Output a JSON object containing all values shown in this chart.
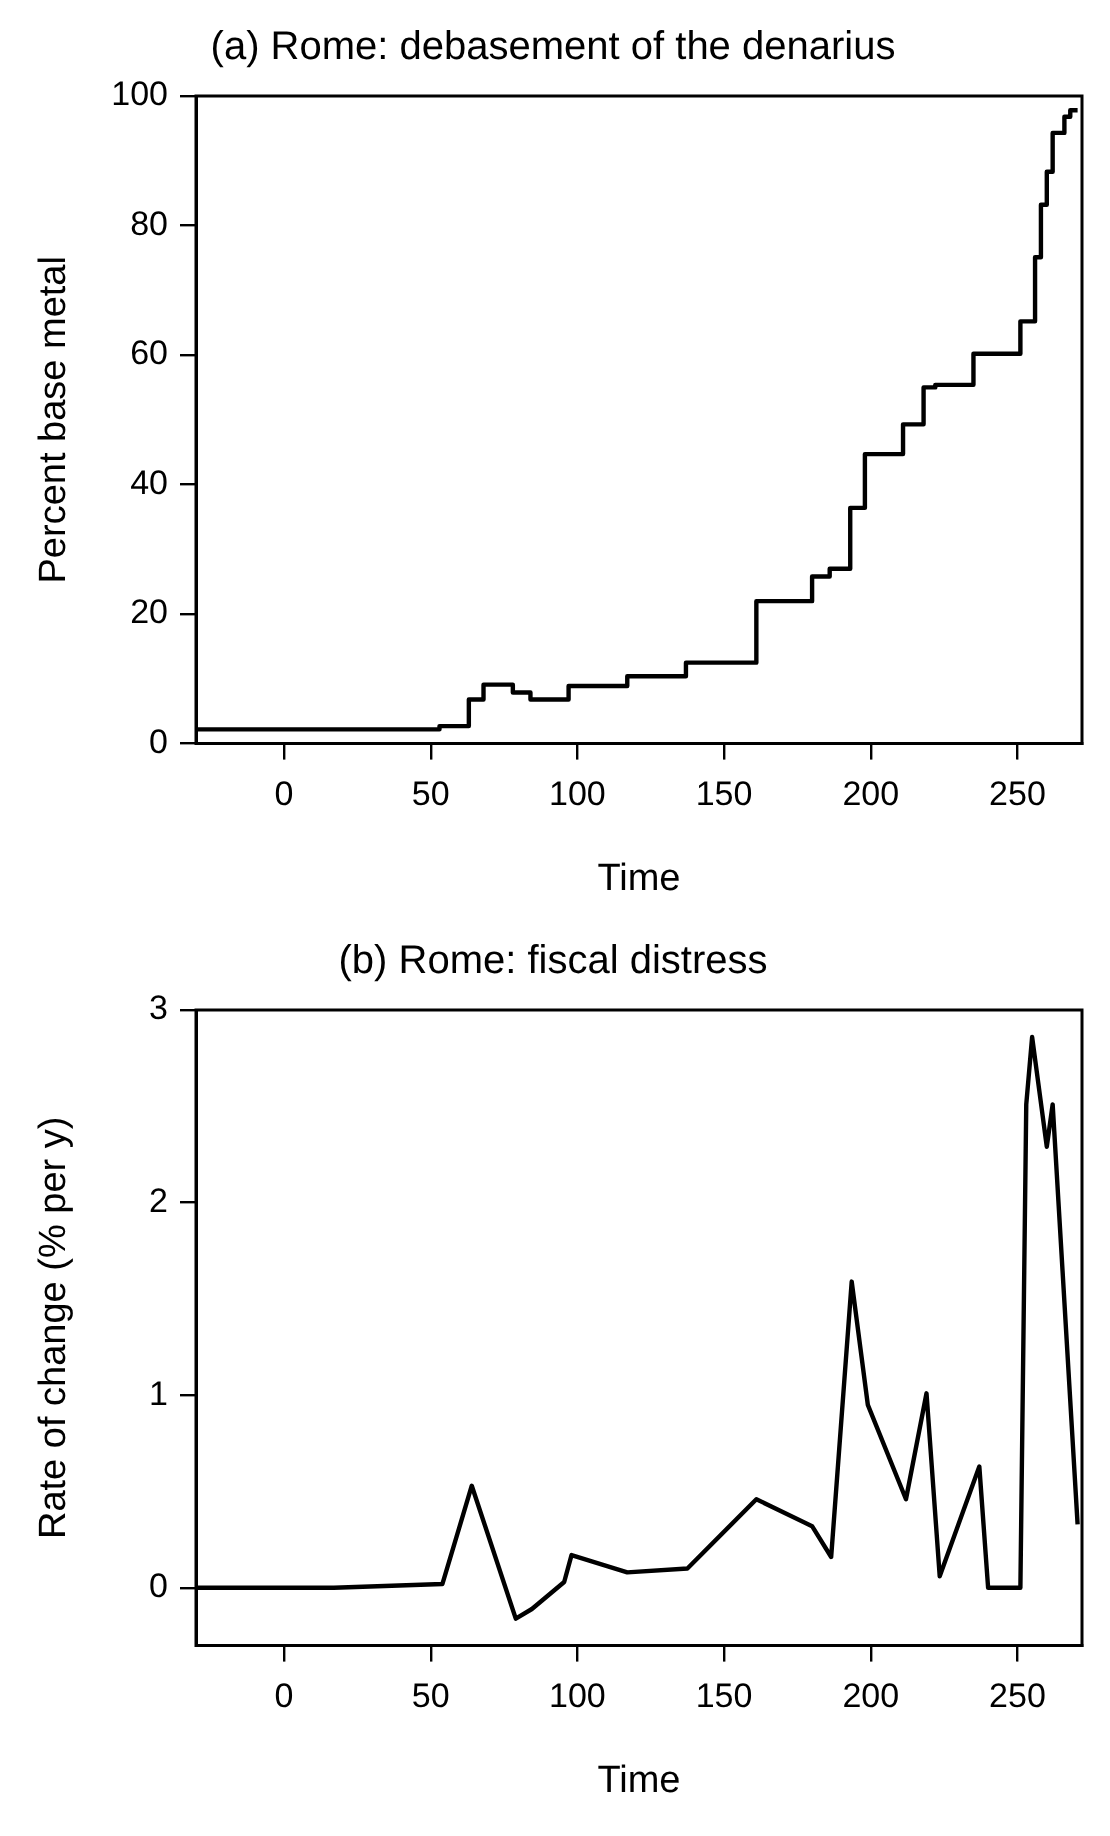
{
  "chart_data": [
    {
      "type": "step",
      "title": "(a) Rome: debasement of the denarius",
      "xlabel": "Time",
      "ylabel": "Percent base metal",
      "x": [
        -30,
        53,
        63,
        68,
        78,
        84,
        97,
        117,
        137,
        161,
        180,
        186,
        193,
        198,
        211,
        218,
        222,
        235,
        251,
        256,
        258,
        260,
        262,
        266,
        268,
        270.5
      ],
      "series": [
        {
          "color": "#000000",
          "values": [
            2.2,
            2.7,
            6.8,
            9.1,
            7.9,
            6.8,
            8.9,
            10.4,
            12.5,
            22,
            25.8,
            27,
            36.4,
            44.7,
            49.3,
            55,
            55.4,
            60.2,
            65.2,
            75.1,
            83.2,
            88.3,
            94.3,
            96.8,
            97.8,
            97.8
          ]
        }
      ],
      "xlim": [
        -30,
        272
      ],
      "xticks": [
        0,
        50,
        100,
        150,
        200,
        250
      ],
      "ylim": [
        0,
        100
      ],
      "yticks": [
        0,
        20,
        40,
        60,
        80,
        100
      ],
      "grid": false
    },
    {
      "type": "line",
      "title": "(b) Rome: fiscal distress",
      "xlabel": "Time",
      "ylabel": "Rate of change (% per y)",
      "x": [
        -30,
        17,
        54,
        64,
        79,
        84.5,
        95.5,
        98,
        117,
        137.5,
        161,
        180,
        186.5,
        193.5,
        199,
        212,
        219,
        223.5,
        237,
        240,
        251,
        253,
        255,
        260,
        262,
        270.5
      ],
      "series": [
        {
          "color": "#000000",
          "values": [
            0,
            0,
            0.02,
            0.53,
            -0.16,
            -0.11,
            0.03,
            0.17,
            0.08,
            0.1,
            0.46,
            0.32,
            0.16,
            1.59,
            0.95,
            0.46,
            1.01,
            0.06,
            0.63,
            0,
            0,
            2.51,
            2.86,
            2.29,
            2.51,
            0.33
          ]
        }
      ],
      "xlim": [
        -30,
        272
      ],
      "xticks": [
        0,
        50,
        100,
        150,
        200,
        250
      ],
      "ylim": [
        -0.3,
        3
      ],
      "yticks": [
        0,
        1,
        2,
        3
      ],
      "grid": false
    }
  ]
}
